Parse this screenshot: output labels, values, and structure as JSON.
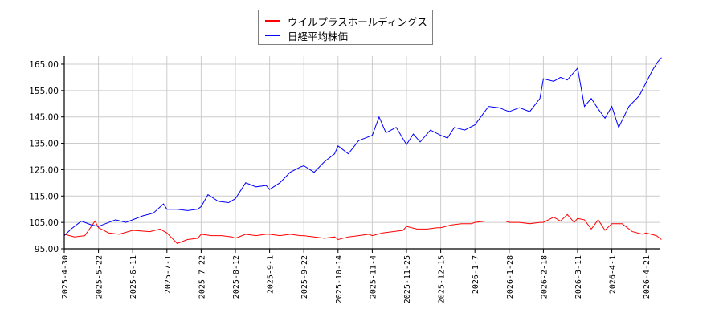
{
  "chart_data": {
    "type": "line",
    "title": "",
    "xlabel": "",
    "ylabel": "",
    "ylim": [
      95,
      168
    ],
    "grid": true,
    "legend_position": "top-center",
    "y_ticks": [
      "95.00",
      "105.00",
      "115.00",
      "125.00",
      "135.00",
      "145.00",
      "155.00",
      "165.00"
    ],
    "x_ticks": [
      "2025-4-30",
      "2025-5-22",
      "2025-6-11",
      "2025-7-1",
      "2025-7-22",
      "2025-8-12",
      "2025-9-1",
      "2025-9-22",
      "2025-10-14",
      "2025-11-4",
      "2025-11-25",
      "2025-12-15",
      "2026-1-7",
      "2026-1-28",
      "2026-2-18",
      "2026-3-11",
      "2026-4-1",
      "2026-4-21"
    ],
    "series": [
      {
        "name": "ウイルプラスホールディングス",
        "color": "#ff0000",
        "x_index": [
          0,
          0.3,
          0.6,
          0.9,
          1.0,
          1.3,
          1.6,
          2.0,
          2.5,
          2.8,
          3.0,
          3.3,
          3.6,
          3.9,
          4.0,
          4.3,
          4.6,
          4.9,
          5.0,
          5.3,
          5.6,
          5.9,
          6.0,
          6.3,
          6.6,
          6.9,
          7.0,
          7.3,
          7.6,
          7.9,
          8.0,
          8.3,
          8.6,
          8.9,
          9.0,
          9.3,
          9.6,
          9.9,
          10.0,
          10.3,
          10.6,
          10.9,
          11.0,
          11.3,
          11.6,
          11.9,
          12.0,
          12.3,
          12.6,
          12.9,
          13.0,
          13.3,
          13.6,
          13.9,
          14.0,
          14.3,
          14.5,
          14.7,
          14.9,
          15.0,
          15.2,
          15.4,
          15.6,
          15.8,
          16.0,
          16.3,
          16.6,
          16.9,
          17.0,
          17.3,
          17.45
        ],
        "values": [
          100.5,
          99.5,
          100.0,
          105.5,
          103.0,
          101.0,
          100.5,
          102.0,
          101.5,
          102.5,
          101.0,
          97.0,
          98.5,
          99.0,
          100.5,
          100.0,
          100.0,
          99.5,
          99.0,
          100.5,
          100.0,
          100.5,
          100.5,
          100.0,
          100.5,
          100.0,
          100.0,
          99.5,
          99.0,
          99.5,
          98.5,
          99.5,
          100.0,
          100.5,
          100.0,
          101.0,
          101.5,
          102.0,
          103.5,
          102.5,
          102.5,
          103.0,
          103.0,
          104.0,
          104.5,
          104.5,
          105.0,
          105.5,
          105.5,
          105.5,
          105.0,
          105.0,
          104.5,
          105.0,
          105.0,
          107.0,
          105.5,
          108.0,
          105.0,
          106.5,
          106.0,
          102.5,
          106.0,
          102.0,
          104.5,
          104.5,
          101.5,
          100.5,
          101.0,
          100.0,
          98.5
        ]
      },
      {
        "name": "日経平均株価",
        "color": "#0000ff",
        "x_index": [
          0,
          0.2,
          0.5,
          0.8,
          1.0,
          1.2,
          1.5,
          1.8,
          2.0,
          2.3,
          2.6,
          2.9,
          3.0,
          3.3,
          3.6,
          3.9,
          4.0,
          4.2,
          4.5,
          4.8,
          5.0,
          5.3,
          5.6,
          5.9,
          6.0,
          6.3,
          6.6,
          6.9,
          7.0,
          7.3,
          7.6,
          7.9,
          8.0,
          8.3,
          8.6,
          8.9,
          9.0,
          9.2,
          9.4,
          9.7,
          10.0,
          10.2,
          10.4,
          10.7,
          11.0,
          11.2,
          11.4,
          11.7,
          12.0,
          12.2,
          12.4,
          12.7,
          13.0,
          13.3,
          13.6,
          13.9,
          14.0,
          14.3,
          14.5,
          14.7,
          14.9,
          15.0,
          15.2,
          15.4,
          15.6,
          15.8,
          16.0,
          16.2,
          16.5,
          16.8,
          17.0,
          17.2,
          17.35,
          17.45
        ],
        "values": [
          100.0,
          102.5,
          105.5,
          104.0,
          103.5,
          104.5,
          106.0,
          105.0,
          106.0,
          107.5,
          108.5,
          112.0,
          110.0,
          110.0,
          109.5,
          110.0,
          111.0,
          115.5,
          113.0,
          112.5,
          114.0,
          120.0,
          118.5,
          119.0,
          117.5,
          120.0,
          124.0,
          126.0,
          126.5,
          124.0,
          128.0,
          131.0,
          134.0,
          131.0,
          136.0,
          137.5,
          138.0,
          145.0,
          139.0,
          141.0,
          134.5,
          138.5,
          135.5,
          140.0,
          138.0,
          137.0,
          141.0,
          140.0,
          142.0,
          145.5,
          149.0,
          148.5,
          147.0,
          148.5,
          147.0,
          152.0,
          159.5,
          158.5,
          160.0,
          159.0,
          162.0,
          163.5,
          149.0,
          152.0,
          148.0,
          144.5,
          149.0,
          141.0,
          149.0,
          153.0,
          158.0,
          163.0,
          166.0,
          167.5
        ]
      }
    ]
  },
  "legend": {
    "items": [
      {
        "label": "ウイルプラスホールディングス",
        "color": "#ff0000"
      },
      {
        "label": "日経平均株価",
        "color": "#0000ff"
      }
    ]
  }
}
